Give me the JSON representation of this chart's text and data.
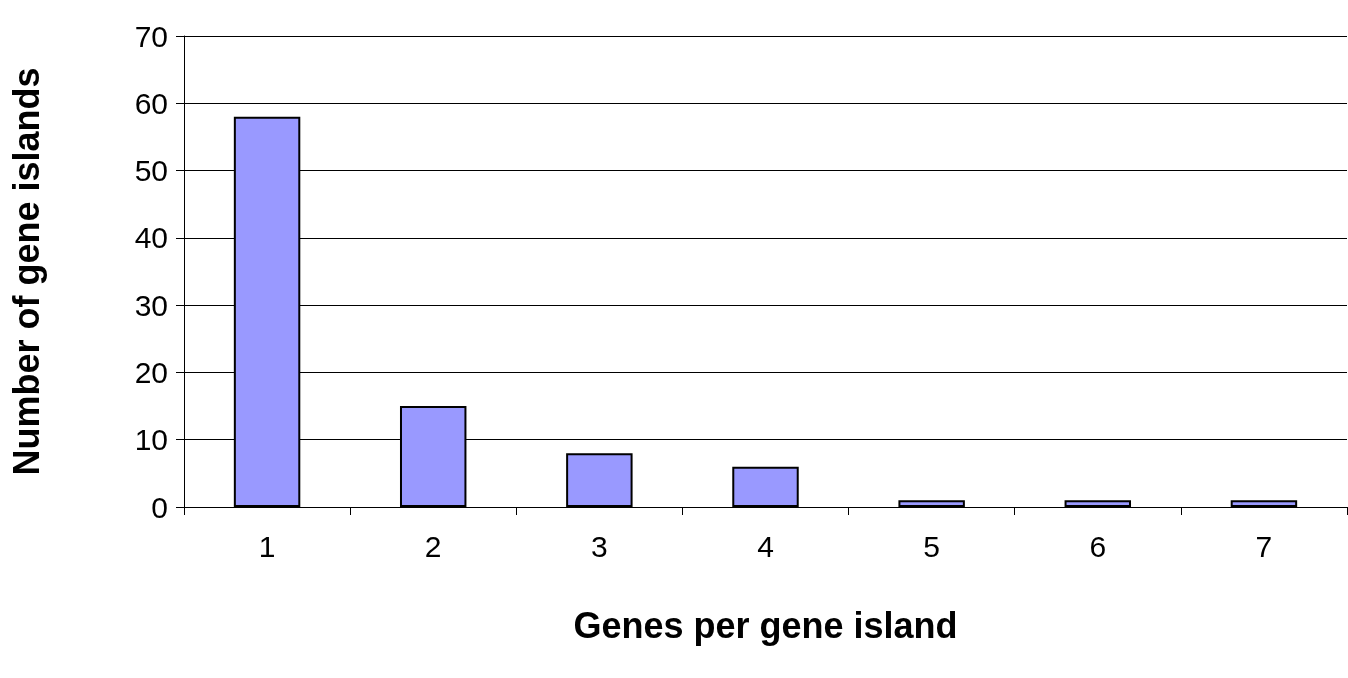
{
  "chart_data": {
    "type": "bar",
    "xlabel": "Genes per gene island",
    "ylabel": "Number of gene islands",
    "categories": [
      "1",
      "2",
      "3",
      "4",
      "5",
      "6",
      "7"
    ],
    "values": [
      58,
      15,
      8,
      6,
      1,
      1,
      1
    ],
    "color": "#9999ff",
    "ylim": [
      0,
      70
    ],
    "yticks": [
      0,
      10,
      20,
      30,
      40,
      50,
      60,
      70
    ],
    "grid": "y"
  }
}
